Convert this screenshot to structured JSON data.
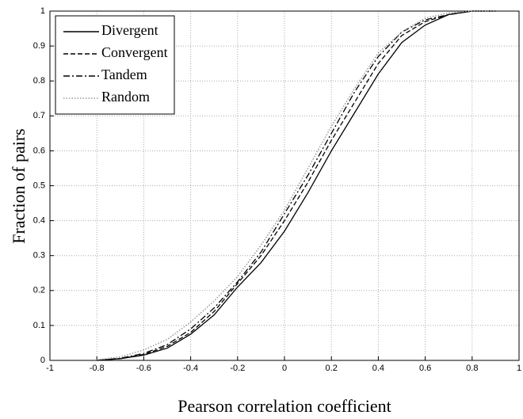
{
  "chart_data": {
    "type": "line",
    "xlabel": "Pearson correlation coefficient",
    "ylabel": "Fraction of pairs",
    "x": [
      -0.8,
      -0.7,
      -0.6,
      -0.5,
      -0.4,
      -0.3,
      -0.2,
      -0.1,
      0,
      0.1,
      0.2,
      0.3,
      0.4,
      0.5,
      0.6,
      0.7,
      0.8,
      0.9
    ],
    "series": [
      {
        "name": "Divergent",
        "color": "#000000",
        "dash": "solid",
        "values": [
          0,
          0.005,
          0.015,
          0.035,
          0.075,
          0.13,
          0.21,
          0.28,
          0.37,
          0.48,
          0.6,
          0.71,
          0.82,
          0.91,
          0.96,
          0.99,
          1,
          1
        ]
      },
      {
        "name": "Convergent",
        "color": "#000000",
        "dash": "dashed",
        "values": [
          0,
          0.005,
          0.017,
          0.04,
          0.08,
          0.14,
          0.22,
          0.3,
          0.4,
          0.51,
          0.63,
          0.74,
          0.85,
          0.93,
          0.97,
          0.99,
          1,
          1
        ]
      },
      {
        "name": "Tandem",
        "color": "#000000",
        "dash": "dashdot",
        "values": [
          0,
          0.006,
          0.02,
          0.045,
          0.09,
          0.15,
          0.225,
          0.31,
          0.42,
          0.53,
          0.65,
          0.77,
          0.87,
          0.94,
          0.975,
          0.99,
          1,
          1
        ]
      },
      {
        "name": "Random",
        "color": "#999999",
        "dash": "dotted",
        "values": [
          0.002,
          0.01,
          0.03,
          0.06,
          0.11,
          0.17,
          0.24,
          0.33,
          0.43,
          0.55,
          0.67,
          0.78,
          0.88,
          0.94,
          0.98,
          0.995,
          1,
          1
        ]
      }
    ],
    "xlim": [
      -1,
      1
    ],
    "xticks": [
      -1,
      -0.8,
      -0.6,
      -0.4,
      -0.2,
      0,
      0.2,
      0.4,
      0.6,
      0.8,
      1
    ],
    "ylim": [
      0,
      1
    ],
    "yticks": [
      0,
      0.1,
      0.2,
      0.3,
      0.4,
      0.5,
      0.6,
      0.7,
      0.8,
      0.9,
      1
    ],
    "grid": true,
    "legend": "upper-left"
  }
}
